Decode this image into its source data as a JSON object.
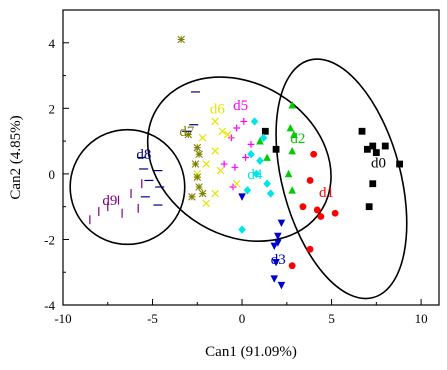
{
  "chart_data": {
    "type": "scatter",
    "xlabel": "Can1 (91.09%)",
    "ylabel": "Can2 (4.85%)",
    "xlim": [
      -10,
      11
    ],
    "ylim": [
      -4,
      5
    ],
    "xticks": [
      -10,
      -5,
      0,
      5,
      10
    ],
    "yticks": [
      -4,
      -2,
      0,
      2,
      4
    ],
    "series": [
      {
        "name": "d0",
        "color": "#000000",
        "marker": "square",
        "label_at": [
          7.2,
          0.2
        ],
        "points": [
          [
            6.7,
            1.3
          ],
          [
            7.3,
            0.85
          ],
          [
            8.0,
            0.85
          ],
          [
            7.0,
            0.75
          ],
          [
            7.5,
            0.65
          ],
          [
            8.8,
            0.3
          ],
          [
            7.3,
            -0.3
          ],
          [
            7.1,
            -1.0
          ],
          [
            1.3,
            1.3
          ],
          [
            1.9,
            0.75
          ]
        ]
      },
      {
        "name": "d1",
        "color": "#ff0000",
        "marker": "circle",
        "label_at": [
          4.3,
          -0.7
        ],
        "points": [
          [
            4.0,
            0.6
          ],
          [
            3.8,
            -0.2
          ],
          [
            4.2,
            -1.1
          ],
          [
            4.4,
            -1.3
          ],
          [
            5.2,
            -1.2
          ],
          [
            3.4,
            -1.0
          ],
          [
            3.8,
            -2.3
          ],
          [
            2.8,
            -2.8
          ]
        ]
      },
      {
        "name": "d2",
        "color": "#00cc00",
        "marker": "triangle",
        "label_at": [
          2.7,
          0.95
        ],
        "points": [
          [
            2.8,
            2.1
          ],
          [
            2.7,
            1.4
          ],
          [
            2.9,
            1.2
          ],
          [
            1.0,
            1.0
          ],
          [
            2.8,
            0.7
          ],
          [
            2.6,
            0.0
          ],
          [
            1.4,
            0.5
          ],
          [
            2.8,
            -0.5
          ]
        ]
      },
      {
        "name": "d3",
        "color": "#0000cc",
        "marker": "triangle-down",
        "label_at": [
          1.6,
          -2.75
        ],
        "points": [
          [
            2.2,
            -1.5
          ],
          [
            2.0,
            -1.9
          ],
          [
            2.0,
            -2.1
          ],
          [
            1.8,
            -2.2
          ],
          [
            1.9,
            -2.7
          ],
          [
            1.8,
            -3.2
          ],
          [
            2.2,
            -3.4
          ],
          [
            0.0,
            -0.7
          ]
        ]
      },
      {
        "name": "d4",
        "color": "#00e5e5",
        "marker": "diamond",
        "label_at": [
          0.3,
          -0.15
        ],
        "points": [
          [
            0.7,
            1.6
          ],
          [
            1.2,
            1.1
          ],
          [
            0.5,
            0.6
          ],
          [
            1.0,
            0.4
          ],
          [
            0.8,
            0.0
          ],
          [
            1.4,
            -0.3
          ],
          [
            0.3,
            -0.5
          ],
          [
            1.6,
            -0.6
          ],
          [
            0.0,
            -1.7
          ]
        ]
      },
      {
        "name": "d5",
        "color": "#ff00ff",
        "marker": "plus",
        "label_at": [
          -0.5,
          1.95
        ],
        "points": [
          [
            0.1,
            1.6
          ],
          [
            -0.3,
            1.4
          ],
          [
            -0.6,
            1.1
          ],
          [
            0.5,
            0.9
          ],
          [
            0.2,
            0.5
          ],
          [
            -0.4,
            0.2
          ],
          [
            -1.0,
            0.3
          ],
          [
            -0.5,
            -0.4
          ]
        ]
      },
      {
        "name": "d6",
        "color": "#e5e500",
        "marker": "x",
        "label_at": [
          -1.8,
          1.85
        ],
        "points": [
          [
            -1.5,
            1.6
          ],
          [
            -1.1,
            1.3
          ],
          [
            -2.2,
            1.1
          ],
          [
            -0.8,
            1.2
          ],
          [
            -1.5,
            0.7
          ],
          [
            -2.0,
            0.3
          ],
          [
            -1.2,
            0.1
          ],
          [
            -2.5,
            0.0
          ],
          [
            -1.5,
            -0.6
          ],
          [
            -2.0,
            -0.9
          ],
          [
            -0.3,
            -0.3
          ]
        ]
      },
      {
        "name": "d7",
        "color": "#808000",
        "marker": "asterisk",
        "label_at": [
          -3.5,
          1.15
        ],
        "points": [
          [
            -3.4,
            4.1
          ],
          [
            -3.0,
            1.2
          ],
          [
            -2.5,
            0.8
          ],
          [
            -2.4,
            0.6
          ],
          [
            -2.6,
            0.3
          ],
          [
            -2.5,
            -0.1
          ],
          [
            -2.4,
            -0.4
          ],
          [
            -2.8,
            -0.7
          ],
          [
            -2.2,
            -0.6
          ]
        ]
      },
      {
        "name": "d8",
        "color": "#000080",
        "marker": "hline",
        "label_at": [
          -5.9,
          0.45
        ],
        "points": [
          [
            -2.6,
            2.5
          ],
          [
            -2.7,
            1.5
          ],
          [
            -3.1,
            1.3
          ],
          [
            -5.6,
            0.5
          ],
          [
            -5.5,
            0.15
          ],
          [
            -4.7,
            0.1
          ],
          [
            -5.2,
            -0.2
          ],
          [
            -4.6,
            -0.4
          ],
          [
            -5.4,
            -0.7
          ],
          [
            -4.7,
            -0.95
          ]
        ]
      },
      {
        "name": "d9",
        "color": "#800080",
        "marker": "vline",
        "label_at": [
          -7.8,
          -0.95
        ],
        "points": [
          [
            -5.6,
            -0.3
          ],
          [
            -6.2,
            -0.6
          ],
          [
            -6.9,
            -0.8
          ],
          [
            -7.5,
            -1.0
          ],
          [
            -8.0,
            -1.15
          ],
          [
            -5.8,
            -1.05
          ],
          [
            -6.7,
            -1.2
          ],
          [
            -8.5,
            -1.4
          ]
        ]
      }
    ],
    "ellipses": [
      {
        "cx": -6.4,
        "cy": -0.4,
        "rx": 3.2,
        "ry": 1.75,
        "angle": 0
      },
      {
        "cx": -0.15,
        "cy": 0.45,
        "rx": 4.25,
        "ry": 2.95,
        "angle": -59
      },
      {
        "cx": 5.55,
        "cy": -0.15,
        "rx": 3.3,
        "ry": 3.75,
        "angle": -15
      }
    ]
  }
}
